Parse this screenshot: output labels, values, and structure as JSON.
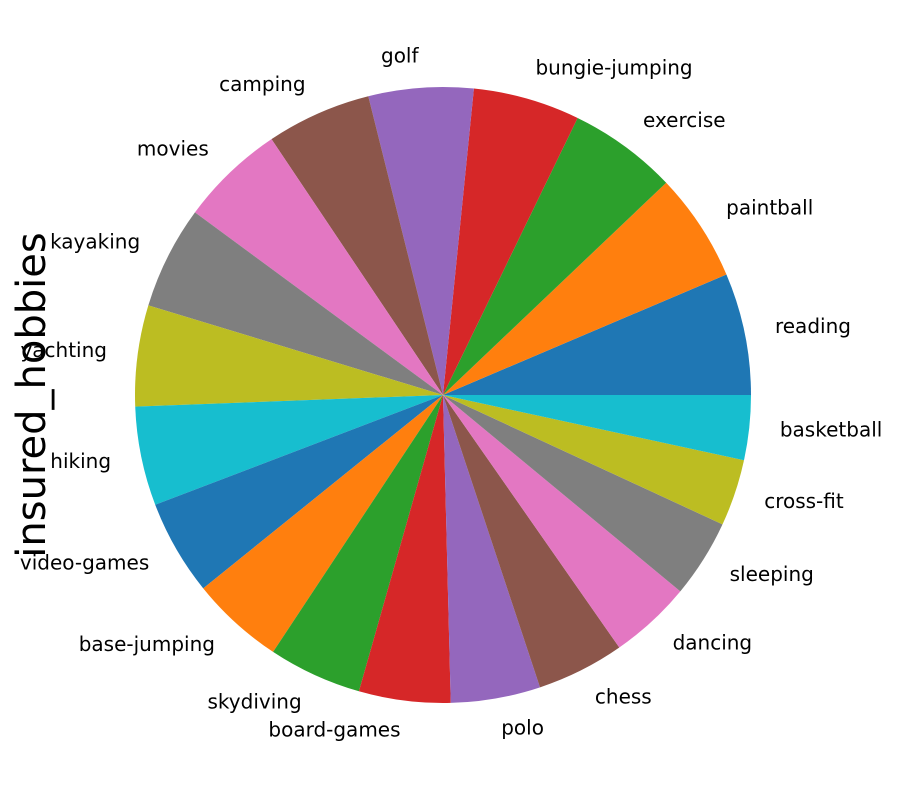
{
  "chart_data": {
    "type": "pie",
    "ylabel": "insured_hobbies",
    "start_angle_deg": 0,
    "direction": "counterclockwise",
    "categories": [
      "reading",
      "paintball",
      "exercise",
      "bungie-jumping",
      "golf",
      "camping",
      "movies",
      "kayaking",
      "yachting",
      "hiking",
      "video-games",
      "base-jumping",
      "skydiving",
      "board-games",
      "polo",
      "chess",
      "dancing",
      "sleeping",
      "cross-fit",
      "basketball"
    ],
    "values": [
      64,
      57,
      57,
      56,
      55,
      55,
      55,
      54,
      53,
      52,
      50,
      49,
      49,
      48,
      47,
      46,
      43,
      41,
      35,
      34
    ],
    "colors": [
      "#1f77b4",
      "#ff7f0e",
      "#2ca02c",
      "#d62728",
      "#9467bd",
      "#8c564b",
      "#e377c2",
      "#7f7f7f",
      "#bcbd22",
      "#17becf"
    ]
  }
}
